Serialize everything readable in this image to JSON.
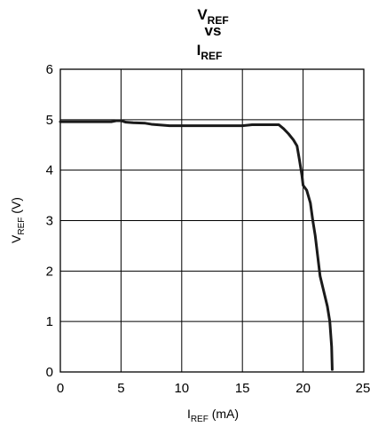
{
  "chart_data": {
    "type": "line",
    "title": {
      "line1": {
        "main": "V",
        "sub": "REF"
      },
      "line2": "vs",
      "line3": {
        "main": "I",
        "sub": "REF"
      }
    },
    "xlabel": {
      "main": "I",
      "sub": "REF",
      "suffix": " (mA)"
    },
    "ylabel": {
      "main": "V",
      "sub": "REF",
      "suffix": " (V)"
    },
    "xlim": [
      0,
      25
    ],
    "ylim": [
      0,
      6
    ],
    "xticks": [
      "0",
      "5",
      "10",
      "15",
      "20",
      "25"
    ],
    "yticks": [
      "0",
      "1",
      "2",
      "3",
      "4",
      "5",
      "6"
    ],
    "grid": true,
    "series": [
      {
        "color": "#1a1a1a",
        "x": [
          0,
          4.2,
          4.6,
          5.0,
          5.4,
          6.0,
          7.0,
          7.5,
          9.0,
          12.0,
          15.0,
          15.8,
          16.5,
          17.5,
          18.0,
          18.4,
          18.8,
          19.2,
          19.5,
          19.7,
          19.9,
          20.0,
          20.3,
          20.6,
          20.8,
          21.0,
          21.2,
          21.4,
          21.7,
          22.0,
          22.2,
          22.35,
          22.4
        ],
        "y": [
          4.96,
          4.96,
          4.98,
          4.98,
          4.95,
          4.94,
          4.93,
          4.91,
          4.88,
          4.88,
          4.88,
          4.9,
          4.9,
          4.9,
          4.9,
          4.82,
          4.72,
          4.6,
          4.48,
          4.2,
          3.9,
          3.7,
          3.6,
          3.35,
          3.0,
          2.7,
          2.3,
          1.9,
          1.6,
          1.3,
          1.0,
          0.5,
          0.05
        ]
      }
    ]
  }
}
